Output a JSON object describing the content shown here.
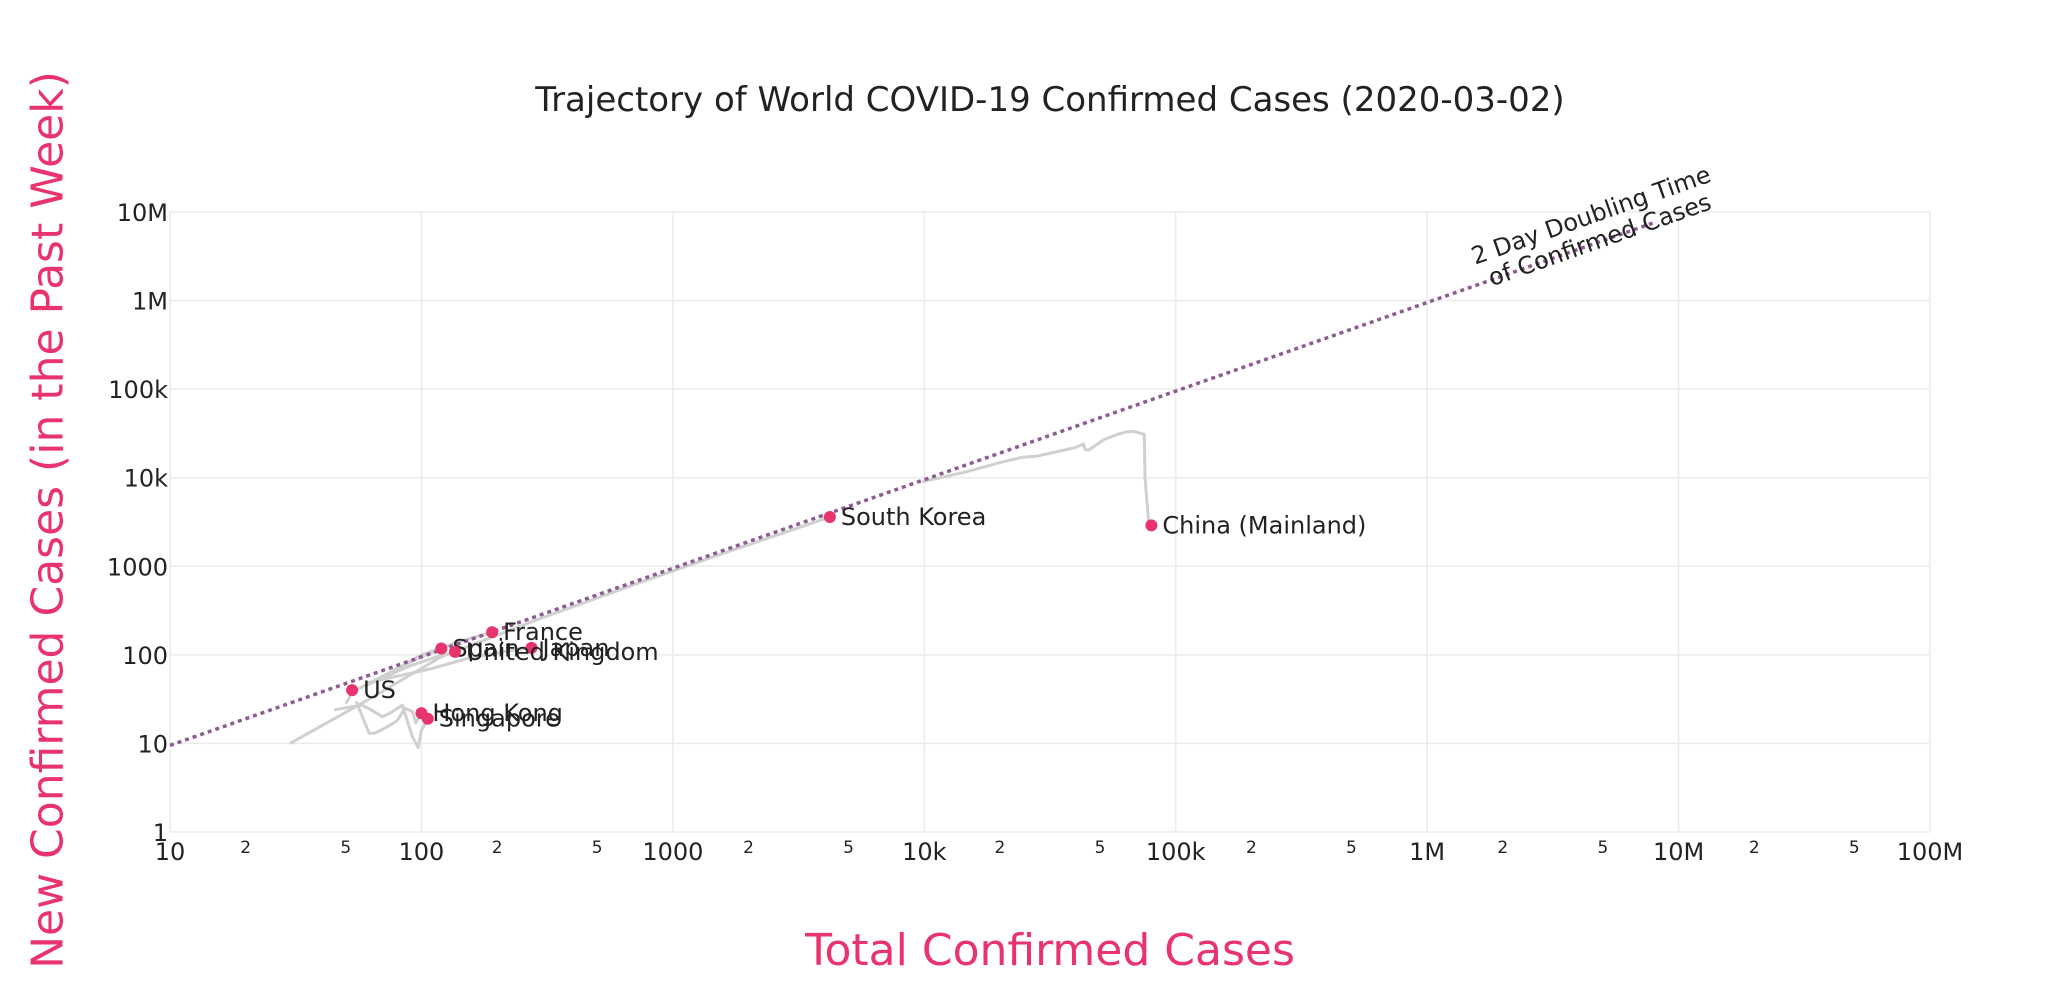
{
  "chart_data": {
    "type": "scatter",
    "title": "Trajectory of World COVID-19 Confirmed Cases (2020-03-02)",
    "xlabel": "Total Confirmed Cases",
    "ylabel": "New Confirmed Cases (in the Past Week)",
    "xscale": "log",
    "yscale": "log",
    "xlim": [
      10,
      100000000
    ],
    "ylim": [
      1,
      10000000
    ],
    "x_tick_labels": [
      {
        "v": 10,
        "t": "10"
      },
      {
        "v": 100,
        "t": "100"
      },
      {
        "v": 1000,
        "t": "1000"
      },
      {
        "v": 10000,
        "t": "10k"
      },
      {
        "v": 100000,
        "t": "100k"
      },
      {
        "v": 1000000,
        "t": "1M"
      },
      {
        "v": 10000000,
        "t": "10M"
      },
      {
        "v": 100000000,
        "t": "100M"
      }
    ],
    "x_minor_labels": [
      "2",
      "5"
    ],
    "y_tick_labels": [
      {
        "v": 1,
        "t": "1"
      },
      {
        "v": 10,
        "t": "10"
      },
      {
        "v": 100,
        "t": "100"
      },
      {
        "v": 1000,
        "t": "1000"
      },
      {
        "v": 10000,
        "t": "10k"
      },
      {
        "v": 100000,
        "t": "100k"
      },
      {
        "v": 1000000,
        "t": "1M"
      },
      {
        "v": 10000000,
        "t": "10M"
      }
    ],
    "reference_line": {
      "name": "2 Day Doubling Time of Confirmed Cases",
      "label_line1": "2 Day Doubling Time",
      "label_line2": "of Confirmed Cases",
      "x": [
        10,
        8000000
      ],
      "y": [
        9.5,
        7600000
      ],
      "color": "#8e5c91"
    },
    "colors": {
      "point": "#e8336d",
      "trajectory": "#d0d0d0",
      "grid": "#ebebeb",
      "axis_title": "#e8336d"
    },
    "points": [
      {
        "name": "China (Mainland)",
        "x": 80026,
        "y": 2900
      },
      {
        "name": "South Korea",
        "x": 4212,
        "y": 3600
      },
      {
        "name": "France",
        "x": 191,
        "y": 180
      },
      {
        "name": "Spain",
        "x": 120,
        "y": 118
      },
      {
        "name": "Japan",
        "x": 274,
        "y": 120
      },
      {
        "name": "United Kingdom",
        "x": 136,
        "y": 108
      },
      {
        "name": "US",
        "x": 53,
        "y": 40
      },
      {
        "name": "Hong Kong",
        "x": 100,
        "y": 22
      },
      {
        "name": "Singapore",
        "x": 106,
        "y": 19
      }
    ],
    "trajectories": [
      {
        "name": "China (Mainland)",
        "x": [
          9800,
          14400,
          20400,
          24500,
          28000,
          34500,
          40000,
          43000,
          43500,
          45000,
          52000,
          59000,
          64000,
          68000,
          73000,
          75000,
          75500,
          76000,
          78000,
          80026
        ],
        "y": [
          9000,
          11500,
          15000,
          17000,
          17500,
          20000,
          22000,
          24000,
          21000,
          20500,
          27000,
          31000,
          33000,
          33500,
          31500,
          31000,
          10000,
          8000,
          3200,
          2900
        ]
      },
      {
        "name": "South Korea",
        "x": [
          30,
          60,
          120,
          300,
          700,
          1700,
          2900,
          4212
        ],
        "y": [
          10,
          30,
          95,
          260,
          620,
          1500,
          2500,
          3600
        ]
      },
      {
        "name": "Japan",
        "x": [
          60,
          110,
          150,
          210,
          274
        ],
        "y": [
          48,
          70,
          90,
          108,
          120
        ]
      },
      {
        "name": "France",
        "x": [
          70,
          100,
          140,
          191
        ],
        "y": [
          55,
          100,
          140,
          180
        ]
      },
      {
        "name": "Spain",
        "x": [
          55,
          80,
          100,
          120
        ],
        "y": [
          40,
          70,
          95,
          118
        ]
      },
      {
        "name": "United Kingdom",
        "x": [
          60,
          90,
          115,
          136
        ],
        "y": [
          45,
          75,
          95,
          108
        ]
      },
      {
        "name": "US",
        "x": [
          50,
          52,
          53
        ],
        "y": [
          28,
          34,
          40
        ]
      },
      {
        "name": "Hong Kong",
        "x": [
          55,
          62,
          65,
          72,
          80,
          86,
          92,
          95,
          100
        ],
        "y": [
          30,
          13,
          13,
          15,
          18,
          25,
          23,
          17,
          22
        ]
      },
      {
        "name": "Singapore",
        "x": [
          45,
          58,
          63,
          70,
          75,
          84,
          92,
          97,
          100,
          106
        ],
        "y": [
          24,
          27,
          24,
          20,
          22,
          27,
          12,
          9,
          14,
          19
        ]
      }
    ]
  }
}
